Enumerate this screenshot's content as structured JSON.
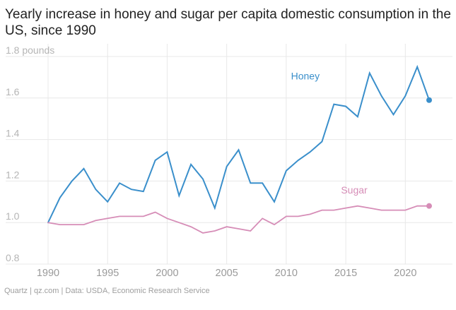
{
  "title": "Yearly increase in honey and sugar per capita domestic consumption in the US, since 1990",
  "footer": {
    "brand": "Quartz | qz.com",
    "separator": "|",
    "source": "Data: USDA, Economic Research Service"
  },
  "colors": {
    "honey": "#3a8fcb",
    "sugar": "#d68db7"
  },
  "chart_data": {
    "type": "line",
    "title": "Yearly increase in honey and sugar per capita domestic consumption in the US, since 1990",
    "xlabel": "",
    "ylabel": "pounds",
    "xlim": [
      1990,
      2022
    ],
    "ylim": [
      0.8,
      1.8
    ],
    "grid": true,
    "x": [
      1990,
      1991,
      1992,
      1993,
      1994,
      1995,
      1996,
      1997,
      1998,
      1999,
      2000,
      2001,
      2002,
      2003,
      2004,
      2005,
      2006,
      2007,
      2008,
      2009,
      2010,
      2011,
      2012,
      2013,
      2014,
      2015,
      2016,
      2017,
      2018,
      2019,
      2020,
      2021,
      2022
    ],
    "x_ticks": [
      1990,
      1995,
      2000,
      2005,
      2010,
      2015,
      2020
    ],
    "x_tick_labels": [
      "1990",
      "1995",
      "2000",
      "2005",
      "2010",
      "2015",
      "2020"
    ],
    "y_ticks": [
      0.8,
      1.0,
      1.2,
      1.4,
      1.6,
      1.8
    ],
    "y_tick_labels": [
      "0.8",
      "1.0",
      "1.2",
      "1.4",
      "1.6",
      "1.8 pounds"
    ],
    "series": [
      {
        "name": "Honey",
        "values": [
          1.0,
          1.12,
          1.2,
          1.26,
          1.16,
          1.1,
          1.19,
          1.16,
          1.15,
          1.3,
          1.34,
          1.13,
          1.28,
          1.21,
          1.07,
          1.27,
          1.35,
          1.19,
          1.19,
          1.1,
          1.25,
          1.3,
          1.34,
          1.39,
          1.57,
          1.56,
          1.51,
          1.72,
          1.61,
          1.52,
          1.61,
          1.75,
          1.59
        ]
      },
      {
        "name": "Sugar",
        "values": [
          1.0,
          0.99,
          0.99,
          0.99,
          1.01,
          1.02,
          1.03,
          1.03,
          1.03,
          1.05,
          1.02,
          1.0,
          0.98,
          0.95,
          0.96,
          0.98,
          0.97,
          0.96,
          1.02,
          0.99,
          1.03,
          1.03,
          1.04,
          1.06,
          1.06,
          1.07,
          1.08,
          1.07,
          1.06,
          1.06,
          1.06,
          1.08,
          1.08
        ]
      }
    ]
  }
}
